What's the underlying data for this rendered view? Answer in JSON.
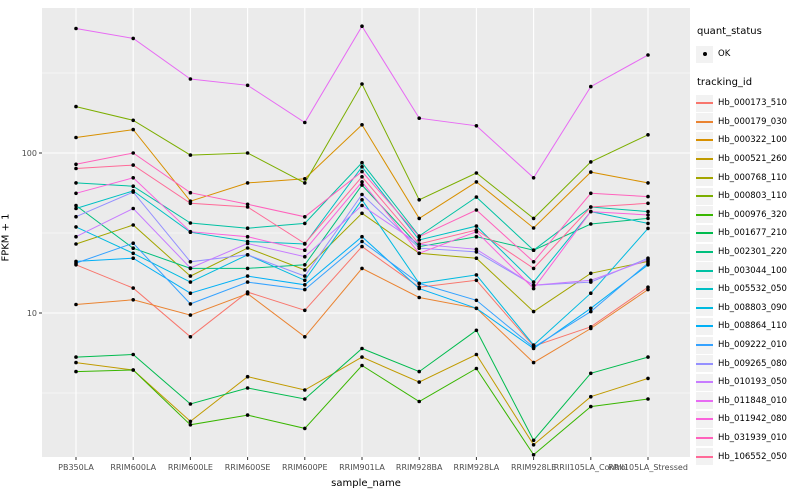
{
  "figure": {
    "panel_background": "#EBEBEB",
    "grid_color": "#FFFFFF",
    "tick_label_color": "#4D4D4D",
    "point_color": "#000000",
    "legend_key_background": "#F2F2F2"
  },
  "chart_data": {
    "type": "line",
    "title": "",
    "xlabel": "sample_name",
    "ylabel": "FPKM + 1",
    "y_scale": "log10",
    "y_major_ticks": [
      10,
      100
    ],
    "y_minor_gridlines": [
      3.162,
      31.62,
      316.2
    ],
    "ylim": [
      1.26,
      800
    ],
    "grid": "on",
    "legend_position": "right",
    "point_shape": "filled-circle",
    "categories": [
      "PB350LA",
      "RRIM600LA",
      "RRIM600LE",
      "RRIM600SE",
      "RRIM600PE",
      "RRIM901LA",
      "RRIM928BA",
      "RRIM928LA",
      "RRIM928LE",
      "RRII105LA_Control",
      "RRII105LA_Stressed"
    ],
    "legend": {
      "quant_status_title": "quant_status",
      "quant_status_value": "OK",
      "tracking_title": "tracking_id"
    },
    "series": [
      {
        "name": "Hb_000173_510",
        "color": "#F8766D",
        "values": [
          20,
          14.3,
          7.1,
          13.5,
          10.4,
          26,
          14.5,
          16,
          6.2,
          8.2,
          14.5
        ]
      },
      {
        "name": "Hb_000179_030",
        "color": "#EA8331",
        "values": [
          11.3,
          12.1,
          9.7,
          13.2,
          7.1,
          19,
          12.5,
          10.7,
          4.9,
          8.0,
          14.0
        ]
      },
      {
        "name": "Hb_000322_100",
        "color": "#D89000",
        "values": [
          125,
          140,
          50,
          65,
          69,
          150,
          39,
          66,
          34,
          76,
          65
        ]
      },
      {
        "name": "Hb_000521_260",
        "color": "#C09B00",
        "values": [
          4.9,
          4.4,
          2.1,
          4.0,
          3.3,
          5.3,
          3.7,
          5.5,
          1.5,
          3.0,
          3.9
        ]
      },
      {
        "name": "Hb_000768_110",
        "color": "#A3A500",
        "values": [
          27,
          35.5,
          17,
          25.5,
          18.6,
          42,
          23.6,
          22,
          10.2,
          17.7,
          21
        ]
      },
      {
        "name": "Hb_000803_110",
        "color": "#7CAE00",
        "values": [
          195,
          160,
          97,
          100,
          65,
          270,
          51,
          75,
          39,
          88,
          130
        ]
      },
      {
        "name": "Hb_000976_320",
        "color": "#39B600",
        "values": [
          4.3,
          4.4,
          2.0,
          2.3,
          1.9,
          4.7,
          2.8,
          4.5,
          1.3,
          2.6,
          2.9
        ]
      },
      {
        "name": "Hb_001677_210",
        "color": "#00BB4E",
        "values": [
          5.3,
          5.5,
          2.7,
          3.4,
          2.9,
          6.0,
          4.3,
          7.8,
          1.6,
          4.2,
          5.3
        ]
      },
      {
        "name": "Hb_002301_220",
        "color": "#00BF7D",
        "values": [
          47,
          25.4,
          19.0,
          19.0,
          20.0,
          63,
          26,
          30,
          24.7,
          36,
          39
        ]
      },
      {
        "name": "Hb_003044_100",
        "color": "#00C1A3",
        "values": [
          65,
          62,
          36.5,
          33.9,
          36.3,
          87,
          30.3,
          53,
          24.7,
          46,
          43
        ]
      },
      {
        "name": "Hb_005532_050",
        "color": "#00BFC4",
        "values": [
          45,
          58,
          32,
          28,
          27,
          82,
          28.6,
          34.9,
          15.6,
          43,
          36.3
        ]
      },
      {
        "name": "Hb_008803_090",
        "color": "#00BAE0",
        "values": [
          34.5,
          23.6,
          15.6,
          23.1,
          16,
          51,
          15.3,
          17.3,
          6.3,
          13.3,
          33.8
        ]
      },
      {
        "name": "Hb_008864_110",
        "color": "#00B0F6",
        "values": [
          21,
          22,
          13.3,
          17,
          15,
          30,
          14.2,
          10.7,
          6.0,
          10.7,
          20
        ]
      },
      {
        "name": "Hb_009222_010",
        "color": "#35A2FF",
        "values": [
          20.5,
          27.3,
          11.4,
          15.6,
          14.0,
          28,
          15.3,
          12.0,
          6.1,
          10.2,
          20.5
        ]
      },
      {
        "name": "Hb_009265_080",
        "color": "#9590FF",
        "values": [
          40,
          57,
          20.9,
          23.1,
          17,
          55,
          25.4,
          24.1,
          14.9,
          15.6,
          22
        ]
      },
      {
        "name": "Hb_010193_050",
        "color": "#C77CFF",
        "values": [
          30,
          45,
          19.1,
          27.2,
          22.5,
          47,
          26.9,
          25,
          14.9,
          16,
          21.5
        ]
      },
      {
        "name": "Hb_011848_010",
        "color": "#E76BF3",
        "values": [
          600,
          520,
          290,
          265,
          155,
          620,
          165,
          148,
          70,
          260,
          410
        ]
      },
      {
        "name": "Hb_011942_080",
        "color": "#FA62DB",
        "values": [
          56,
          70,
          32.2,
          30,
          24.7,
          66,
          23.6,
          32.2,
          14.2,
          43,
          41
        ]
      },
      {
        "name": "Hb_031939_010",
        "color": "#FF62BC",
        "values": [
          85,
          100,
          56.5,
          47.8,
          39.9,
          76.5,
          30,
          44,
          20.9,
          56,
          53.4
        ]
      },
      {
        "name": "Hb_106552_050",
        "color": "#FF6A98",
        "values": [
          80,
          84,
          48.5,
          46,
          27.2,
          71,
          27,
          33,
          19,
          46,
          48.5
        ]
      }
    ]
  }
}
